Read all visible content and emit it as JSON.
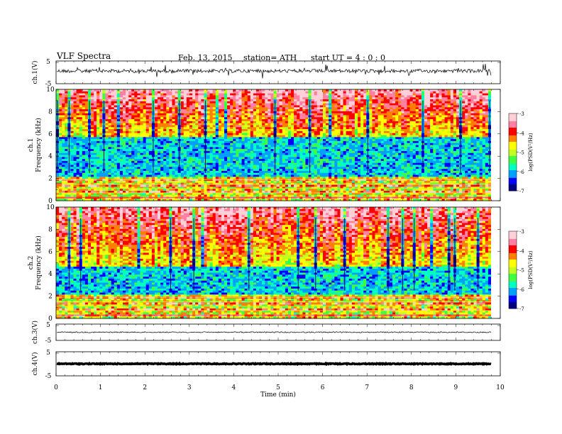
{
  "header": {
    "title": "VLF  Spectra",
    "date": "Feb. 13, 2015",
    "station": "station= ATH",
    "start": "start  UT  =   4  : 0  : 0"
  },
  "chart_data": [
    {
      "type": "line",
      "panel": "ch1-waveform",
      "ylabel": "ch.1(V)",
      "yticks": [
        "5",
        "-5"
      ],
      "ylim": [
        -5,
        5
      ],
      "series": [
        {
          "values_description": "",
          "mean_level": 0.6
        }
      ],
      "color": "#000000"
    },
    {
      "type": "heatmap",
      "panel": "ch1-spectrogram",
      "ylabel_line1": "ch.1",
      "ylabel_line2": "Frequency  (kHz)",
      "yticks": [
        "0",
        "2",
        "4",
        "6",
        "8",
        "10"
      ],
      "ylim": [
        0,
        10
      ],
      "xlim": [
        0,
        9.8
      ],
      "colorbar": {
        "label": "log(PSD(V²/Hz)",
        "ticks": [
          "-3",
          "-4",
          "-5",
          "-6",
          "-7"
        ],
        "range": [
          -7,
          -3
        ]
      }
    },
    {
      "type": "heatmap",
      "panel": "ch2-spectrogram",
      "ylabel_line1": "ch.2",
      "ylabel_line2": "Frequency  (kHz)",
      "yticks": [
        "0",
        "2",
        "4",
        "6",
        "8",
        "10"
      ],
      "ylim": [
        0,
        10
      ],
      "xlim": [
        0,
        9.8
      ],
      "colorbar": {
        "label": "log(PSD(V²/Hz)",
        "ticks": [
          "-3",
          "-4",
          "-5",
          "-6",
          "-7"
        ],
        "range": [
          -7,
          -3
        ]
      }
    },
    {
      "type": "line",
      "panel": "ch3-waveform",
      "ylabel": "ch.3(V)",
      "yticks": [
        "5",
        "-5"
      ],
      "ylim": [
        -5,
        5
      ],
      "mean_level": 0
    },
    {
      "type": "line",
      "panel": "ch4-waveform",
      "ylabel": "ch.4(V)",
      "yticks": [
        "5",
        "-5"
      ],
      "ylim": [
        -5,
        5
      ],
      "mean_level": 0
    }
  ],
  "xaxis": {
    "label": "Time  (min)",
    "ticks": [
      "0",
      "1",
      "2",
      "3",
      "4",
      "5",
      "6",
      "7",
      "8",
      "9",
      "10"
    ],
    "range": [
      0,
      10
    ]
  },
  "colors": {
    "colormap": [
      "#000080",
      "#0000ff",
      "#00a0ff",
      "#00ffc0",
      "#40ff40",
      "#c0ff20",
      "#ffff00",
      "#ff8000",
      "#ff0000",
      "#ff80a0",
      "#ffd0d8"
    ]
  }
}
